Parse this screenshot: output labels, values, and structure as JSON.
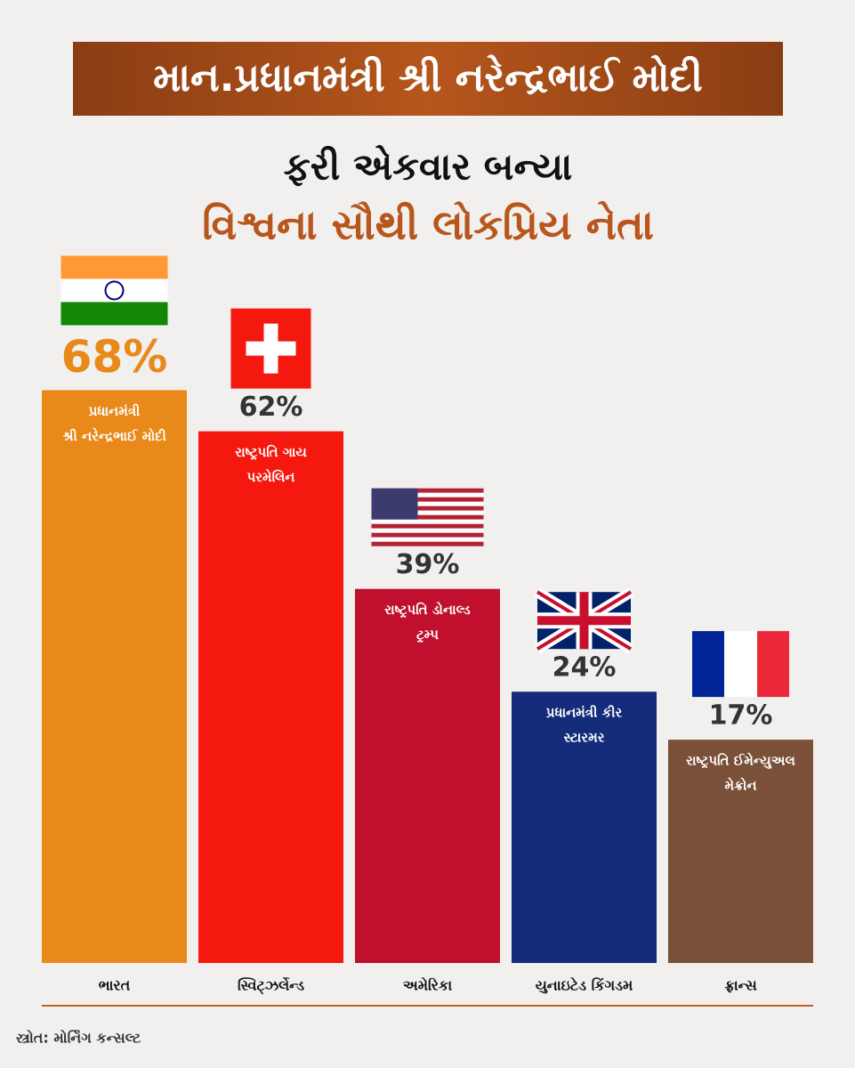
{
  "chart_data": {
    "type": "bar",
    "title": "માન.પ્રધાનમંત્રી શ્રી નરેન્દ્રભાઈ મોદી",
    "subtitle": "ફરી એકવાર બન્યા",
    "headline": "વિશ્વના સૌથી લોકપ્રિય નેતા",
    "categories": [
      "ભારત",
      "સ્વિટ્ઝર્લેન્ડ",
      "અમેરિકા",
      "યુનાઇટેડ કિંગડમ",
      "ફ્રાન્સ"
    ],
    "values": [
      68,
      62,
      39,
      24,
      17
    ],
    "value_labels": [
      "68%",
      "62%",
      "39%",
      "24%",
      "17%"
    ],
    "leaders": [
      [
        "પ્રધાનમંત્રી",
        "શ્રી નરેન્દ્રભાઈ મોદી"
      ],
      [
        "રાષ્ટ્રપતિ ગાય",
        "પરમેલિન"
      ],
      [
        "રાષ્ટ્રપતિ ડોનાલ્ડ",
        "ટ્રમ્પ"
      ],
      [
        "પ્રધાનમંત્રી કીર",
        "સ્ટારમર"
      ],
      [
        "રાષ્ટ્રપતિ ઈમેન્યુઅલ",
        "મેક્રોન"
      ]
    ],
    "colors": [
      "#e8891a",
      "#f5180f",
      "#c0102e",
      "#142c7a",
      "#7a5038"
    ],
    "source": "સ્ત્રોત: મોર્નિંગ કન્સલ્ટ"
  }
}
